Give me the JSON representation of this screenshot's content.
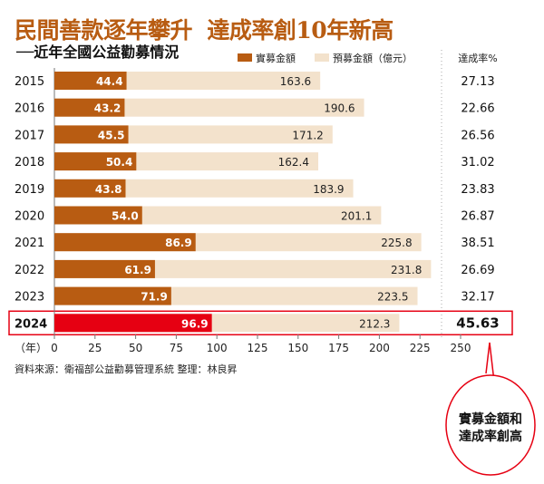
{
  "chart_data": {
    "type": "bar",
    "orientation": "horizontal",
    "title": "民間善款逐年攀升  達成率創10年新高",
    "subtitle": "──近年全國公益勸募情況",
    "categories": [
      "2015",
      "2016",
      "2017",
      "2018",
      "2019",
      "2020",
      "2021",
      "2022",
      "2023",
      "2024"
    ],
    "series": [
      {
        "name": "實募金額",
        "values": [
          44.4,
          43.2,
          45.5,
          50.4,
          43.8,
          54.0,
          86.9,
          61.9,
          71.9,
          96.9
        ],
        "color": "#b85c12",
        "highlight_color": "#e60012"
      },
      {
        "name": "預募金額（億元）",
        "values": [
          163.6,
          190.6,
          171.2,
          162.4,
          183.9,
          201.1,
          225.8,
          231.8,
          223.5,
          212.3
        ],
        "color": "#f3e2cc"
      }
    ],
    "rate_header": "達成率%",
    "rates": [
      "27.13",
      "22.66",
      "26.56",
      "31.02",
      "23.83",
      "26.87",
      "38.51",
      "26.69",
      "32.17",
      "45.63"
    ],
    "xlabel": "（年）",
    "xticks": [
      0,
      25,
      50,
      75,
      100,
      125,
      150,
      175,
      200,
      225,
      250
    ],
    "xlim": [
      0,
      250
    ],
    "highlight_category": "2024",
    "highlight_color": "#e60012",
    "source": "資料來源：衛福部公益勸募管理系統  整理：林良昇",
    "callout": "實募金額和達成率創高",
    "callout_lines": [
      "實募金額和",
      "達成率創高"
    ]
  }
}
